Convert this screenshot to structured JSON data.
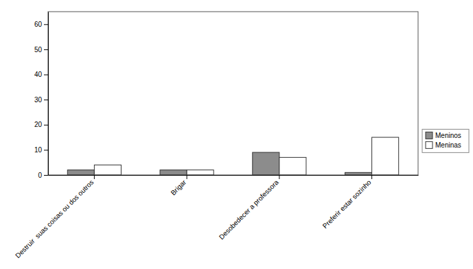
{
  "chart_data": {
    "type": "bar",
    "categories": [
      "Destruir  suas coisas ou dos outros",
      "Brigar",
      "Desobedecer a professora",
      "Preferir estar sozinho"
    ],
    "series": [
      {
        "name": "Meninos",
        "color": "#8c8c8c",
        "values": [
          2,
          2,
          9,
          1
        ]
      },
      {
        "name": "Meninas",
        "color": "#ffffff",
        "values": [
          4,
          2,
          7,
          15
        ]
      }
    ],
    "ylim": [
      0,
      65
    ],
    "yticks": [
      0,
      10,
      20,
      30,
      40,
      50,
      60
    ],
    "grid": false,
    "legend": "right"
  }
}
